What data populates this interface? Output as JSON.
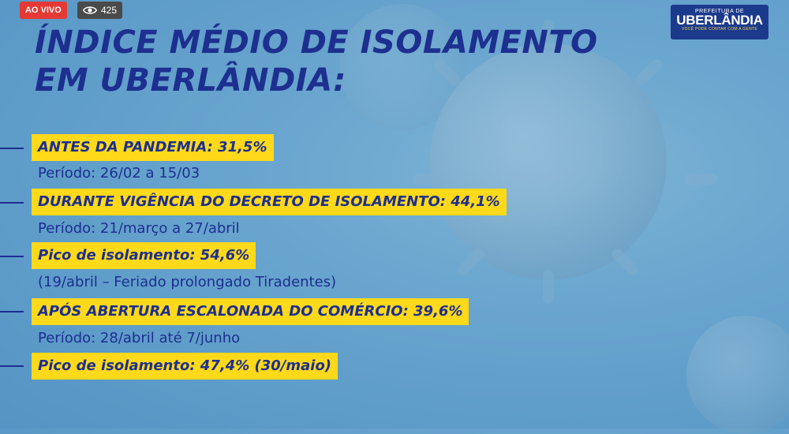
{
  "stream": {
    "live_label": "AO VIVO",
    "viewer_count": "425",
    "eye_icon": "eye-icon"
  },
  "logo": {
    "line1": "PREFEITURA DE",
    "line2": "UBERLÂNDIA",
    "line3": "VOCÊ PODE CONTAR COM A GENTE"
  },
  "title": {
    "line1": "ÍNDICE MÉDIO DE ISOLAMENTO",
    "line2": "EM UBERLÂNDIA:"
  },
  "items": [
    {
      "highlight": "ANTES DA PANDEMIA: 31,5%",
      "detail": "Período: 26/02 a 15/03"
    },
    {
      "highlight": "DURANTE VIGÊNCIA DO DECRETO DE ISOLAMENTO: 44,1%",
      "detail": "Período: 21/março a 27/abril"
    },
    {
      "highlight": "Pico de isolamento: 54,6%",
      "detail": "(19/abril – Feriado prolongado Tiradentes)"
    },
    {
      "highlight": "APÓS ABERTURA ESCALONADA DO COMÉRCIO: 39,6%",
      "detail": "Período: 28/abril até 7/junho"
    },
    {
      "highlight": "Pico de isolamento: 47,4% (30/maio)",
      "detail": ""
    }
  ],
  "colors": {
    "background": "#6aa6cf",
    "highlight": "#ffd91a",
    "text": "#1d2f8f",
    "live": "#e53935"
  }
}
